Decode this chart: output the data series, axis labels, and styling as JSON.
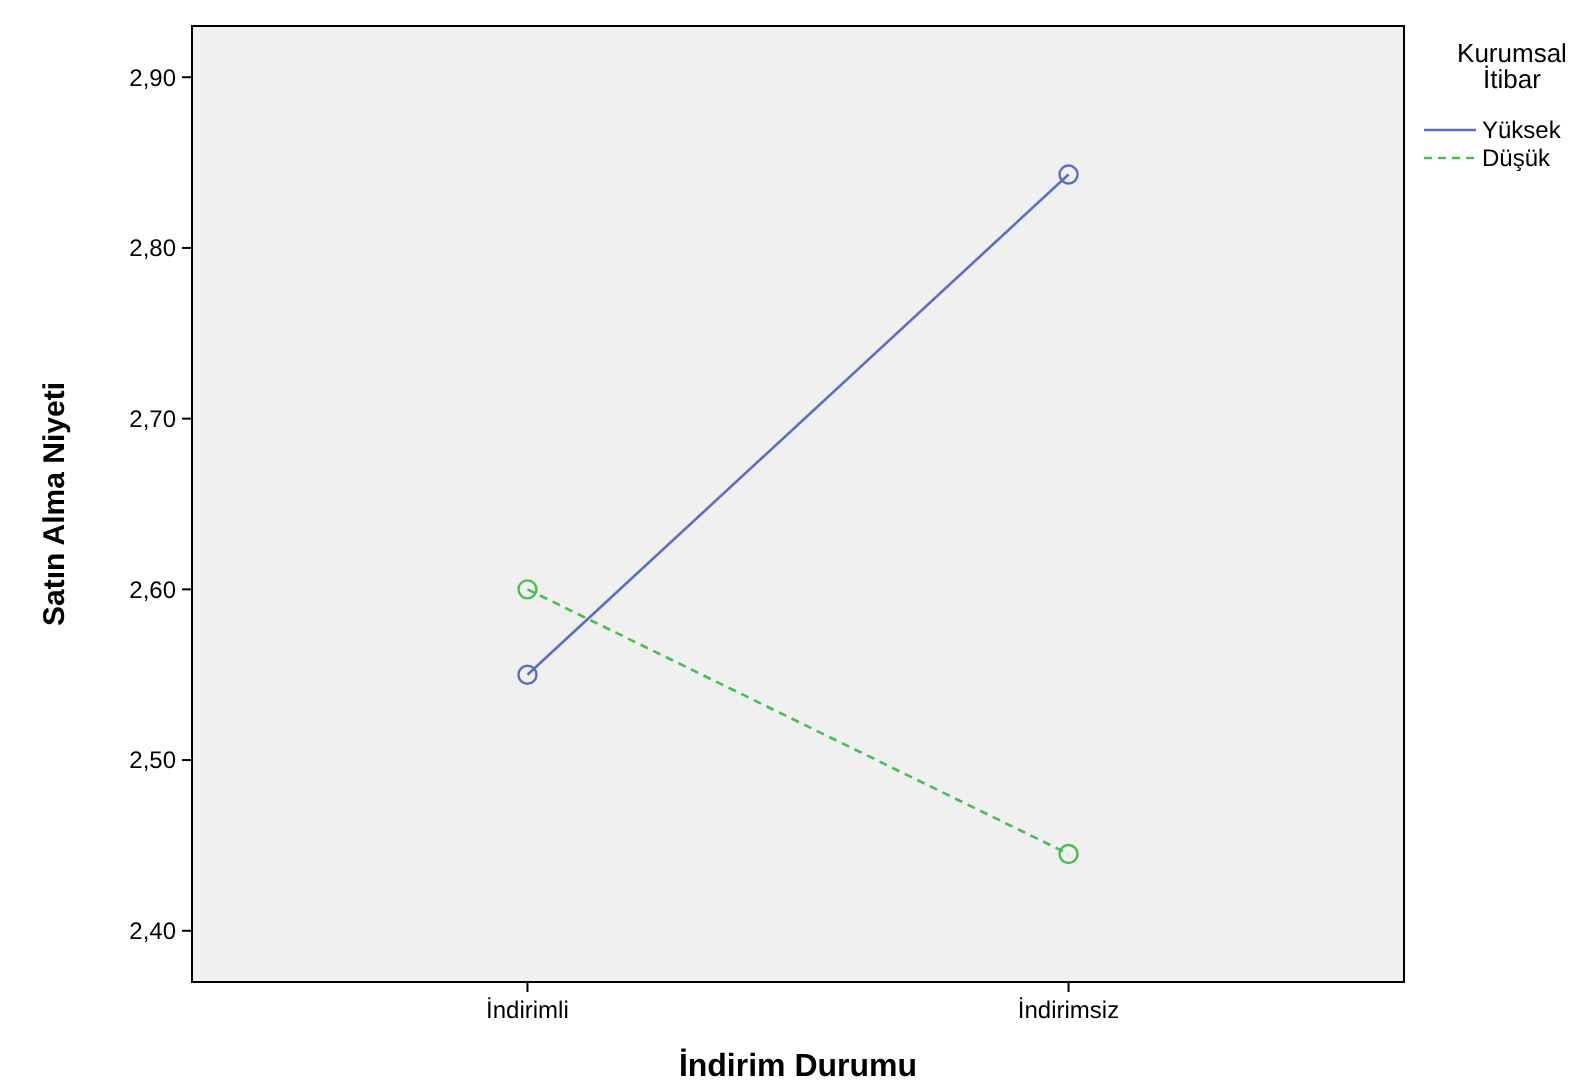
{
  "chart_data": {
    "type": "line",
    "xlabel": "İndirim Durumu",
    "ylabel": "Satın Alma Niyeti",
    "legend_title": "Kurumsal İtibar",
    "categories": [
      "İndirimli",
      "İndirimsiz"
    ],
    "series": [
      {
        "name": "Yüksek",
        "color": "#5a6ec4",
        "values": [
          2.55,
          2.843
        ],
        "line_style": "solid"
      },
      {
        "name": "Düşük",
        "color": "#44c24c",
        "values": [
          2.6,
          2.445
        ],
        "line_style": "dashed"
      }
    ],
    "ylim": [
      2.37,
      2.93
    ],
    "yticks": [
      {
        "value": 2.4,
        "label": "2,40"
      },
      {
        "value": 2.5,
        "label": "2,50"
      },
      {
        "value": 2.6,
        "label": "2,60"
      },
      {
        "value": 2.7,
        "label": "2,70"
      },
      {
        "value": 2.8,
        "label": "2,80"
      },
      {
        "value": 2.9,
        "label": "2,90"
      }
    ],
    "marker": "circle",
    "legend": "top right",
    "grid": false
  }
}
